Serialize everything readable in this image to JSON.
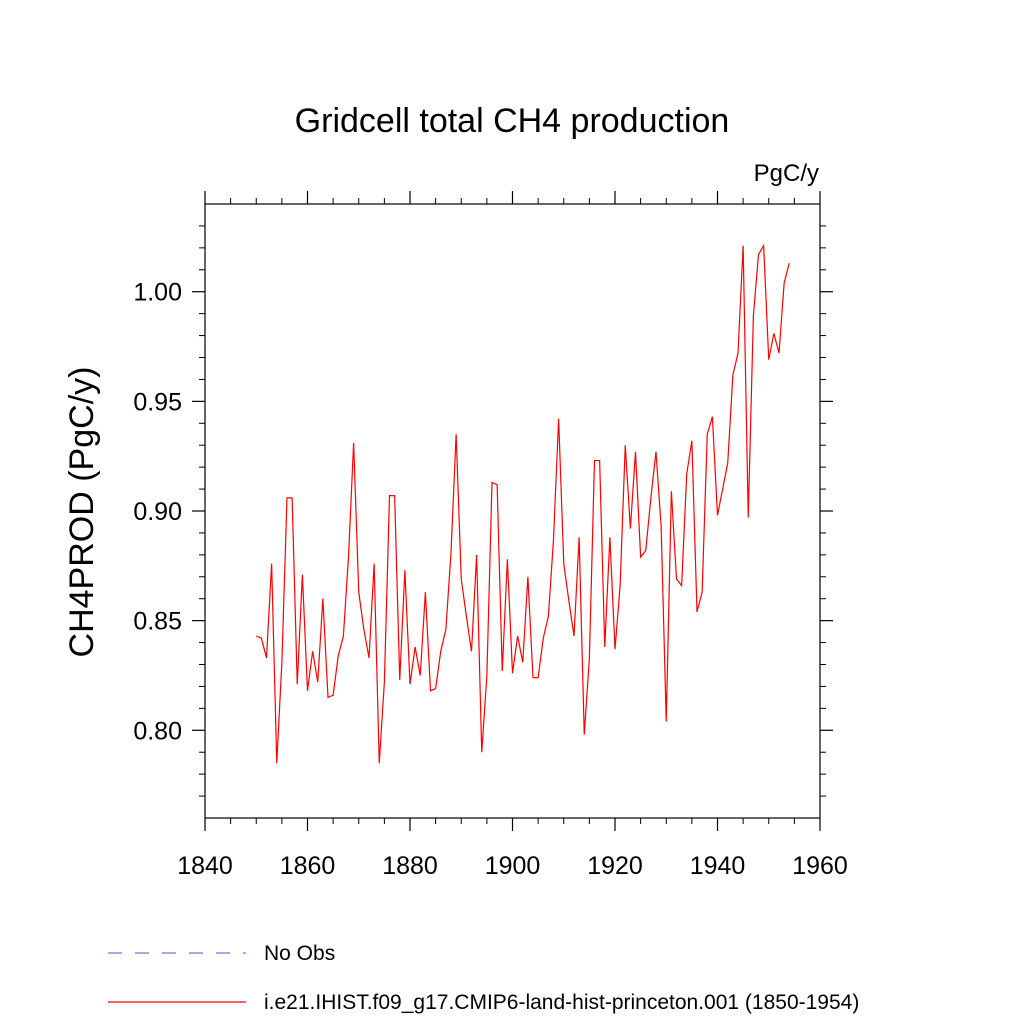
{
  "chart_data": {
    "type": "line",
    "title": "Gridcell total CH4 production",
    "units_label": "PgC/y",
    "ylabel": "CH4PROD  (PgC/y)",
    "xlabel": "",
    "xlim": [
      1840,
      1960
    ],
    "ylim": [
      0.76,
      1.04
    ],
    "x_ticks": [
      1840,
      1860,
      1880,
      1900,
      1920,
      1940,
      1960
    ],
    "y_ticks": [
      0.8,
      0.85,
      0.9,
      0.95,
      1.0
    ],
    "y_tick_labels": [
      "0.80",
      "0.85",
      "0.90",
      "0.95",
      "1.00"
    ],
    "grid": false,
    "legend_position": "bottom",
    "series": [
      {
        "name": "No Obs",
        "color": "#7b73c9",
        "style": "dashed",
        "x": [],
        "values": []
      },
      {
        "name": "i.e21.IHIST.f09_g17.CMIP6-land-hist-princeton.001 (1850-1954)",
        "color": "#ff0000",
        "style": "solid",
        "x": [
          1850,
          1851,
          1852,
          1853,
          1854,
          1855,
          1856,
          1857,
          1858,
          1859,
          1860,
          1861,
          1862,
          1863,
          1864,
          1865,
          1866,
          1867,
          1868,
          1869,
          1870,
          1871,
          1872,
          1873,
          1874,
          1875,
          1876,
          1877,
          1878,
          1879,
          1880,
          1881,
          1882,
          1883,
          1884,
          1885,
          1886,
          1887,
          1888,
          1889,
          1890,
          1891,
          1892,
          1893,
          1894,
          1895,
          1896,
          1897,
          1898,
          1899,
          1900,
          1901,
          1902,
          1903,
          1904,
          1905,
          1906,
          1907,
          1908,
          1909,
          1910,
          1911,
          1912,
          1913,
          1914,
          1915,
          1916,
          1917,
          1918,
          1919,
          1920,
          1921,
          1922,
          1923,
          1924,
          1925,
          1926,
          1927,
          1928,
          1929,
          1930,
          1931,
          1932,
          1933,
          1934,
          1935,
          1936,
          1937,
          1938,
          1939,
          1940,
          1941,
          1942,
          1943,
          1944,
          1945,
          1946,
          1947,
          1948,
          1949,
          1950,
          1951,
          1952,
          1953,
          1954
        ],
        "values": [
          0.843,
          0.842,
          0.833,
          0.876,
          0.785,
          0.831,
          0.906,
          0.906,
          0.821,
          0.871,
          0.818,
          0.836,
          0.822,
          0.86,
          0.815,
          0.816,
          0.834,
          0.843,
          0.879,
          0.931,
          0.863,
          0.846,
          0.833,
          0.876,
          0.785,
          0.822,
          0.907,
          0.907,
          0.823,
          0.873,
          0.821,
          0.838,
          0.825,
          0.863,
          0.818,
          0.819,
          0.836,
          0.846,
          0.881,
          0.935,
          0.869,
          0.852,
          0.836,
          0.88,
          0.79,
          0.825,
          0.913,
          0.912,
          0.827,
          0.878,
          0.826,
          0.843,
          0.831,
          0.87,
          0.824,
          0.824,
          0.842,
          0.852,
          0.887,
          0.942,
          0.876,
          0.859,
          0.843,
          0.888,
          0.798,
          0.833,
          0.923,
          0.923,
          0.838,
          0.888,
          0.837,
          0.866,
          0.93,
          0.892,
          0.927,
          0.879,
          0.882,
          0.906,
          0.927,
          0.893,
          0.804,
          0.909,
          0.869,
          0.866,
          0.917,
          0.932,
          0.854,
          0.863,
          0.935,
          0.943,
          0.898,
          0.91,
          0.922,
          0.962,
          0.972,
          1.021,
          0.897,
          0.989,
          1.017,
          1.021,
          0.969,
          0.981,
          0.972,
          1.004,
          1.013
        ]
      }
    ]
  }
}
